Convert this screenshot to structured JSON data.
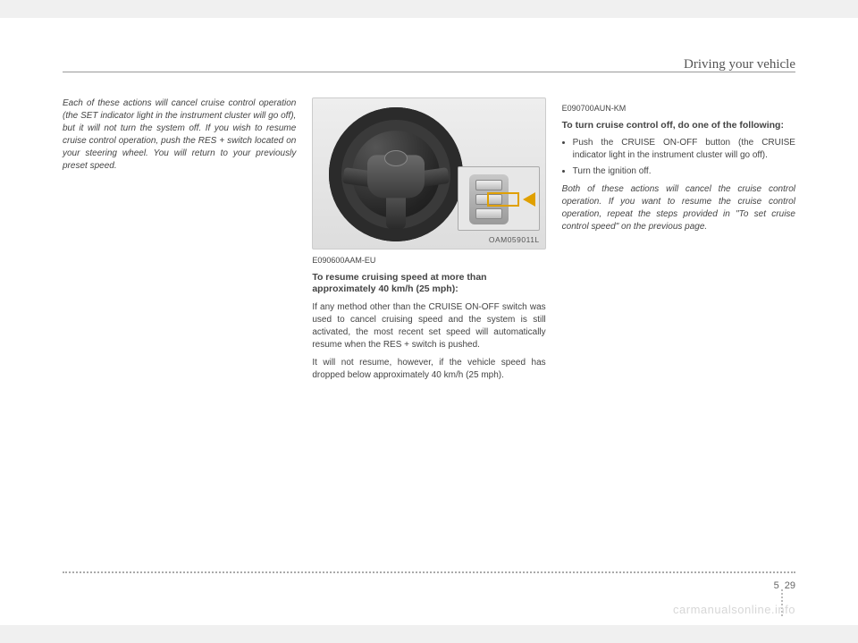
{
  "header": {
    "section_title": "Driving your vehicle"
  },
  "col1": {
    "para1": "Each of these actions will cancel cruise control operation (the SET indicator light in the instrument cluster will go off), but it will not turn the system off. If you wish to resume cruise control operation, push the RES + switch located on your steering wheel. You will return to your previously preset speed."
  },
  "figure": {
    "code": "OAM059011L"
  },
  "col2": {
    "code": "E090600AAM-EU",
    "subhead": "To resume cruising speed at more than approximately 40 km/h (25 mph):",
    "para1": "If any method other than the CRUISE ON-OFF switch was used to cancel cruising speed and the system is still activated, the most recent set speed will automatically resume when the RES + switch is pushed.",
    "para2": "It will not resume, however, if the vehicle speed has dropped below approximately 40 km/h (25 mph)."
  },
  "col3": {
    "code": "E090700AUN-KM",
    "subhead": "To turn cruise control off, do one of the following:",
    "bullet1": "Push the CRUISE ON-OFF button (the CRUISE indicator light in the instrument cluster will go off).",
    "bullet2": "Turn the ignition off.",
    "para1": "Both of these actions will cancel the cruise control operation. If you want to resume the cruise control operation, repeat the steps provided in \"To set cruise control speed\" on the previous page."
  },
  "footer": {
    "chapter": "5",
    "page": "29",
    "watermark": "carmanualsonline.info"
  }
}
